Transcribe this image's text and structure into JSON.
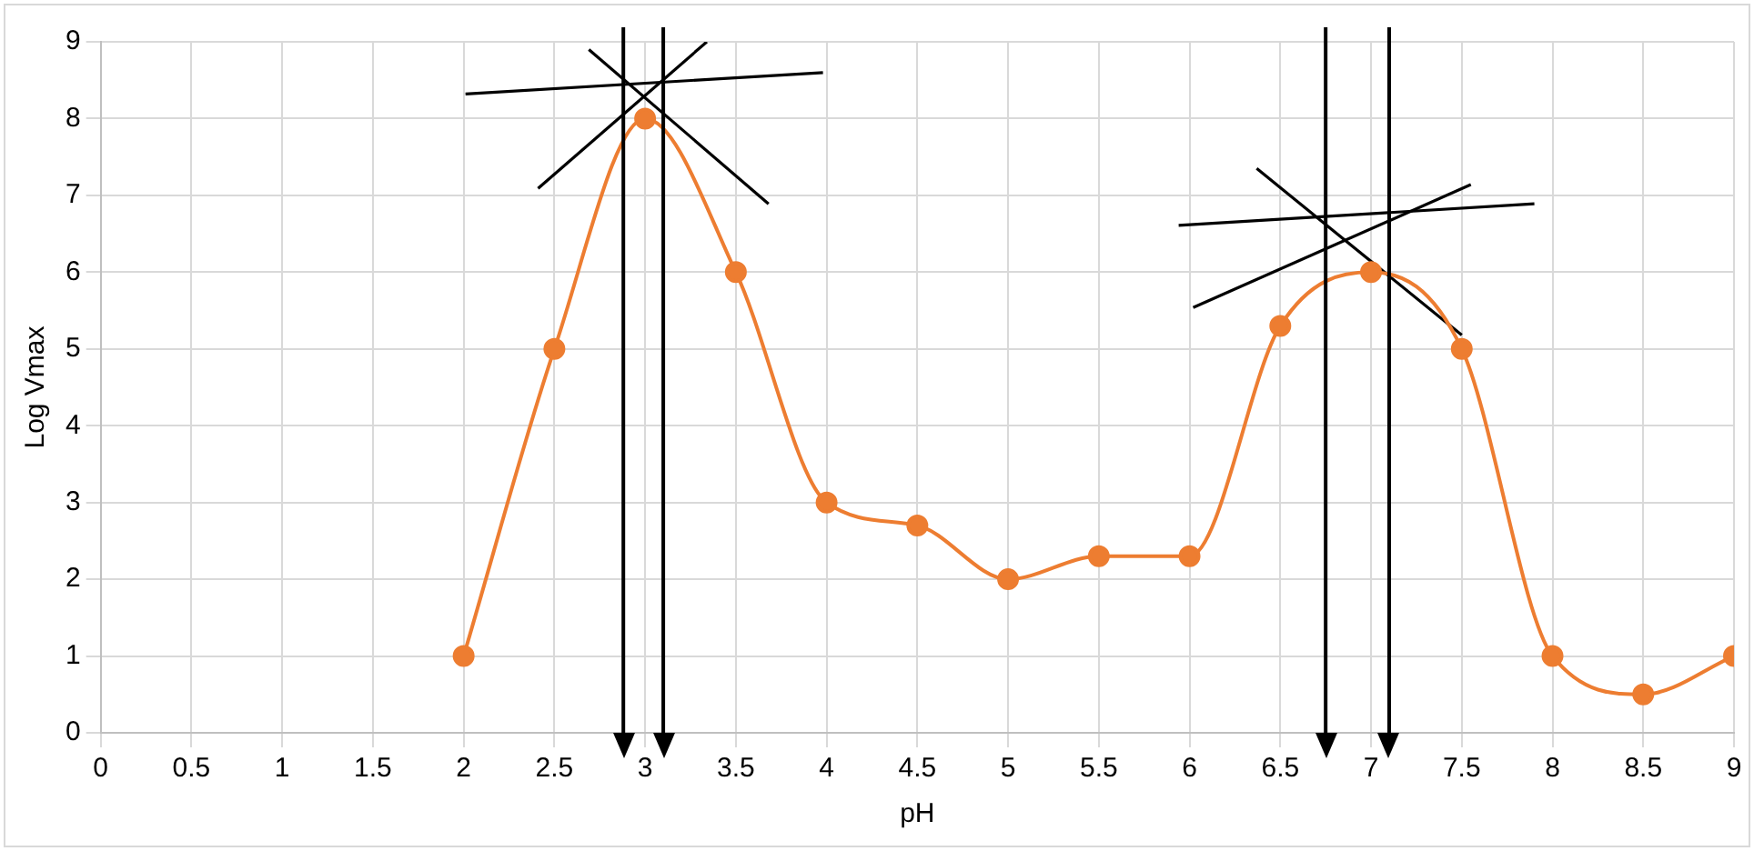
{
  "chart_data": {
    "type": "line",
    "xlabel": "pH",
    "ylabel": "Log Vmax",
    "xlim": [
      0,
      9
    ],
    "ylim": [
      0,
      9
    ],
    "xticks": [
      0,
      0.5,
      1,
      1.5,
      2,
      2.5,
      3,
      3.5,
      4,
      4.5,
      5,
      5.5,
      6,
      6.5,
      7,
      7.5,
      8,
      8.5,
      9
    ],
    "yticks": [
      0,
      1,
      2,
      3,
      4,
      5,
      6,
      7,
      8,
      9
    ],
    "grid": true,
    "marker": "circle",
    "line_style": "solid",
    "x": [
      2,
      2.5,
      3,
      3.5,
      4,
      4.5,
      5,
      5.5,
      6,
      6.5,
      7,
      7.5,
      8,
      8.5,
      9
    ],
    "series": [
      {
        "color": "#ed7d31",
        "values": [
          1,
          5,
          8,
          6,
          3,
          2.7,
          2,
          2.3,
          2.3,
          5.3,
          6,
          5,
          1,
          0.5,
          1
        ]
      },
      {
        "type": "line",
        "marker": "none",
        "color": "#000000",
        "x": [
          2.01,
          3.98
        ],
        "values": [
          8.32,
          8.6
        ]
      },
      {
        "type": "line",
        "marker": "none",
        "color": "#000000",
        "x": [
          2.41,
          3.34
        ],
        "values": [
          7.09,
          9
        ]
      },
      {
        "type": "line",
        "marker": "none",
        "color": "#000000",
        "x": [
          2.69,
          3.68
        ],
        "values": [
          8.9,
          6.89
        ]
      },
      {
        "type": "line",
        "marker": "none",
        "color": "#000000",
        "x": [
          5.94,
          7.9
        ],
        "values": [
          6.61,
          6.89
        ]
      },
      {
        "type": "line",
        "marker": "none",
        "color": "#000000",
        "x": [
          6.02,
          7.55
        ],
        "values": [
          5.54,
          7.14
        ]
      },
      {
        "type": "line",
        "marker": "none",
        "color": "#000000",
        "x": [
          6.37,
          7.5
        ],
        "values": [
          7.35,
          5.18
        ]
      }
    ],
    "ref_lines": [
      {
        "axis": "x",
        "value": 2.88,
        "color": "#000000"
      },
      {
        "axis": "x",
        "value": 3.1,
        "color": "#000000"
      },
      {
        "axis": "x",
        "value": 6.75,
        "color": "#000000"
      },
      {
        "axis": "x",
        "value": 7.1,
        "color": "#000000"
      }
    ]
  }
}
